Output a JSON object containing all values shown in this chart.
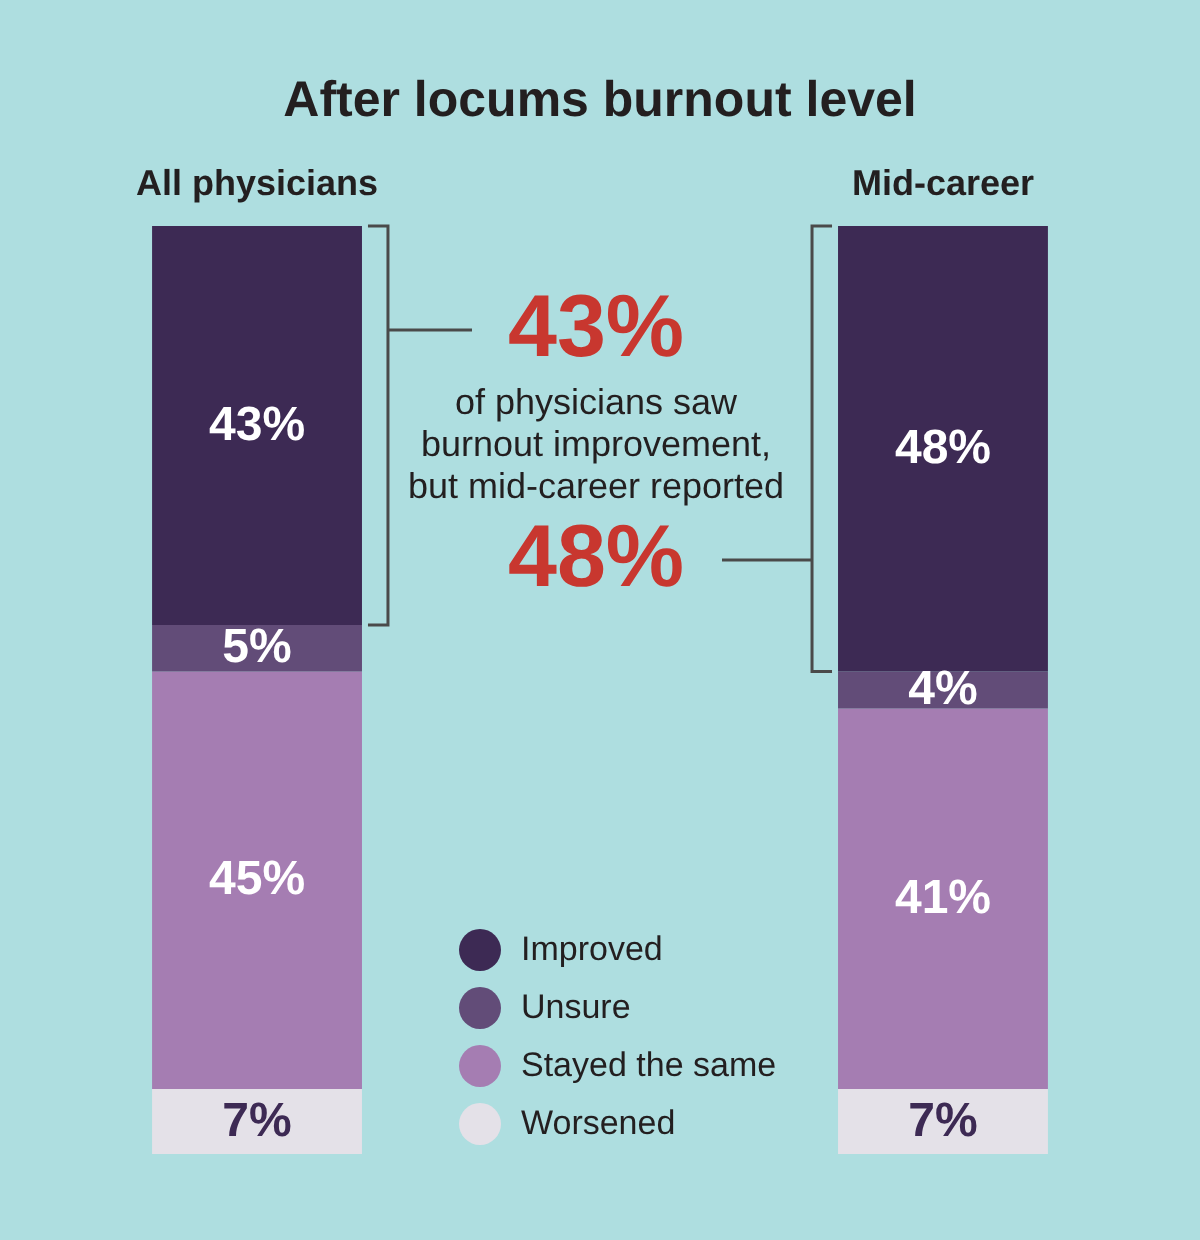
{
  "chart_data": {
    "type": "bar",
    "title": "After locums burnout level",
    "categories": [
      "All physicians",
      "Mid-career"
    ],
    "stacked": true,
    "tick_labels": "x",
    "legend": "bottom",
    "series": [
      {
        "name": "Worsened",
        "color": "#e4e1e8",
        "values": [
          7,
          7
        ],
        "value_labels": [
          "7%",
          "7%"
        ]
      },
      {
        "name": "Stayed the same",
        "color": "#a57db2",
        "values": [
          45,
          41
        ],
        "value_labels": [
          "45%",
          "41%"
        ]
      },
      {
        "name": "Unsure",
        "color": "#624c78",
        "values": [
          5,
          4
        ],
        "value_labels": [
          "5%",
          "4%"
        ]
      },
      {
        "name": "Improved",
        "color": "#3d2a54",
        "values": [
          43,
          48
        ],
        "value_labels": [
          "43%",
          "48%"
        ]
      }
    ],
    "annotations": [
      "43%",
      "of physicians saw\nburnout improvement,\nbut mid-career reported",
      "48%"
    ]
  }
}
